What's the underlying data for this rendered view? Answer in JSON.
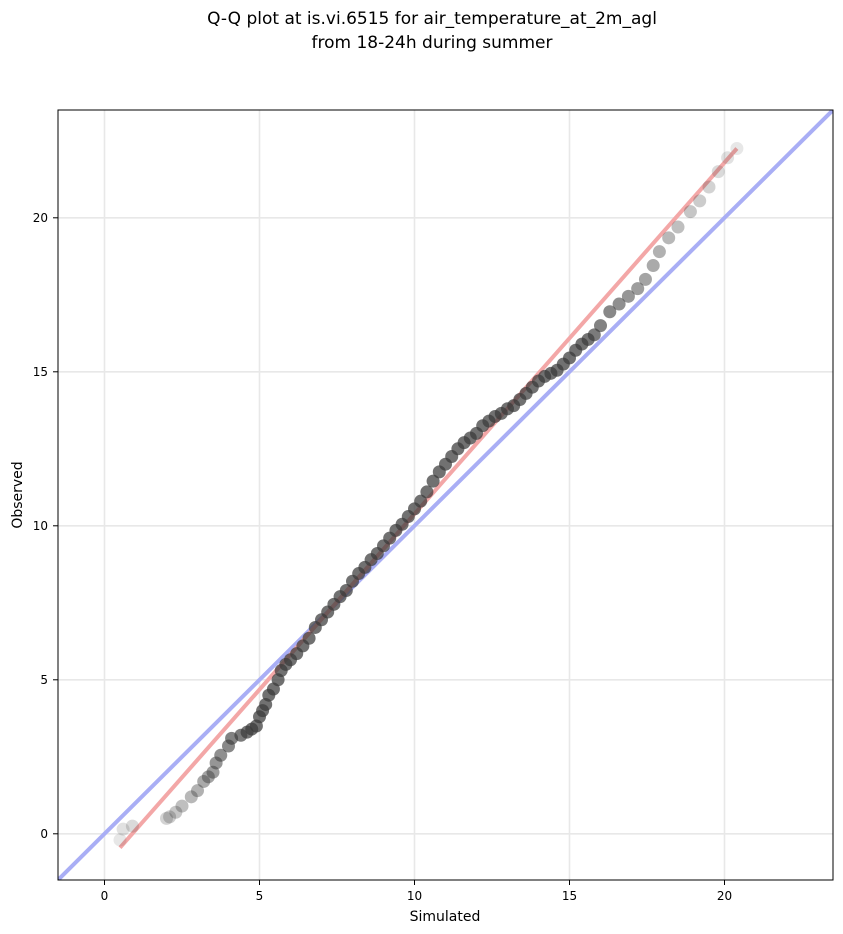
{
  "chart_data": {
    "type": "scatter",
    "title_lines": [
      "Q-Q plot at is.vi.6515 for air_temperature_at_2m_agl",
      "from 18-24h during summer"
    ],
    "xlabel": "Simulated",
    "ylabel": "Observed",
    "xlim": [
      -1.5,
      23.5
    ],
    "ylim": [
      -1.5,
      23.5
    ],
    "xticks": [
      0,
      5,
      10,
      15,
      20
    ],
    "yticks": [
      0,
      5,
      10,
      15,
      20
    ],
    "grid": true,
    "reference_line": {
      "color": "#a9aef5",
      "from": [
        -1.5,
        -1.5
      ],
      "to": [
        23.5,
        23.5
      ]
    },
    "fit_line": {
      "color": "#f3a7a7",
      "from": [
        0.5,
        -0.45
      ],
      "to": [
        20.4,
        22.25
      ]
    },
    "point_color": "#3a3a3a",
    "quantile_points": [
      [
        0.5,
        -0.2
      ],
      [
        0.6,
        0.15
      ],
      [
        0.9,
        0.25
      ],
      [
        2.0,
        0.5
      ],
      [
        2.1,
        0.55
      ],
      [
        2.3,
        0.7
      ],
      [
        2.5,
        0.9
      ],
      [
        2.8,
        1.2
      ],
      [
        3.0,
        1.4
      ],
      [
        3.2,
        1.7
      ],
      [
        3.35,
        1.85
      ],
      [
        3.5,
        2.0
      ],
      [
        3.6,
        2.3
      ],
      [
        3.75,
        2.55
      ],
      [
        4.0,
        2.85
      ],
      [
        4.1,
        3.1
      ],
      [
        4.4,
        3.2
      ],
      [
        4.6,
        3.3
      ],
      [
        4.75,
        3.4
      ],
      [
        4.9,
        3.5
      ],
      [
        5.0,
        3.8
      ],
      [
        5.1,
        4.0
      ],
      [
        5.2,
        4.2
      ],
      [
        5.3,
        4.5
      ],
      [
        5.45,
        4.7
      ],
      [
        5.6,
        5.0
      ],
      [
        5.7,
        5.3
      ],
      [
        5.85,
        5.5
      ],
      [
        6.0,
        5.65
      ],
      [
        6.2,
        5.85
      ],
      [
        6.4,
        6.1
      ],
      [
        6.6,
        6.35
      ],
      [
        6.8,
        6.7
      ],
      [
        7.0,
        6.95
      ],
      [
        7.2,
        7.2
      ],
      [
        7.4,
        7.45
      ],
      [
        7.6,
        7.7
      ],
      [
        7.8,
        7.9
      ],
      [
        8.0,
        8.2
      ],
      [
        8.2,
        8.45
      ],
      [
        8.4,
        8.65
      ],
      [
        8.6,
        8.9
      ],
      [
        8.8,
        9.1
      ],
      [
        9.0,
        9.35
      ],
      [
        9.2,
        9.6
      ],
      [
        9.4,
        9.85
      ],
      [
        9.6,
        10.05
      ],
      [
        9.8,
        10.3
      ],
      [
        10.0,
        10.55
      ],
      [
        10.2,
        10.8
      ],
      [
        10.4,
        11.1
      ],
      [
        10.6,
        11.45
      ],
      [
        10.8,
        11.75
      ],
      [
        11.0,
        12.0
      ],
      [
        11.2,
        12.25
      ],
      [
        11.4,
        12.5
      ],
      [
        11.6,
        12.7
      ],
      [
        11.8,
        12.85
      ],
      [
        12.0,
        13.0
      ],
      [
        12.2,
        13.25
      ],
      [
        12.4,
        13.4
      ],
      [
        12.6,
        13.55
      ],
      [
        12.8,
        13.65
      ],
      [
        13.0,
        13.8
      ],
      [
        13.2,
        13.9
      ],
      [
        13.4,
        14.1
      ],
      [
        13.6,
        14.3
      ],
      [
        13.8,
        14.5
      ],
      [
        14.0,
        14.7
      ],
      [
        14.2,
        14.85
      ],
      [
        14.4,
        14.95
      ],
      [
        14.6,
        15.05
      ],
      [
        14.8,
        15.25
      ],
      [
        15.0,
        15.45
      ],
      [
        15.2,
        15.7
      ],
      [
        15.4,
        15.9
      ],
      [
        15.6,
        16.05
      ],
      [
        15.8,
        16.2
      ],
      [
        16.0,
        16.5
      ],
      [
        16.3,
        16.95
      ],
      [
        16.6,
        17.2
      ],
      [
        16.9,
        17.45
      ],
      [
        17.2,
        17.7
      ],
      [
        17.45,
        18.0
      ],
      [
        17.7,
        18.45
      ],
      [
        17.9,
        18.9
      ],
      [
        18.2,
        19.35
      ],
      [
        18.5,
        19.7
      ],
      [
        18.9,
        20.2
      ],
      [
        19.2,
        20.55
      ],
      [
        19.5,
        21.0
      ],
      [
        19.8,
        21.5
      ],
      [
        20.1,
        21.95
      ],
      [
        20.4,
        22.25
      ]
    ]
  }
}
